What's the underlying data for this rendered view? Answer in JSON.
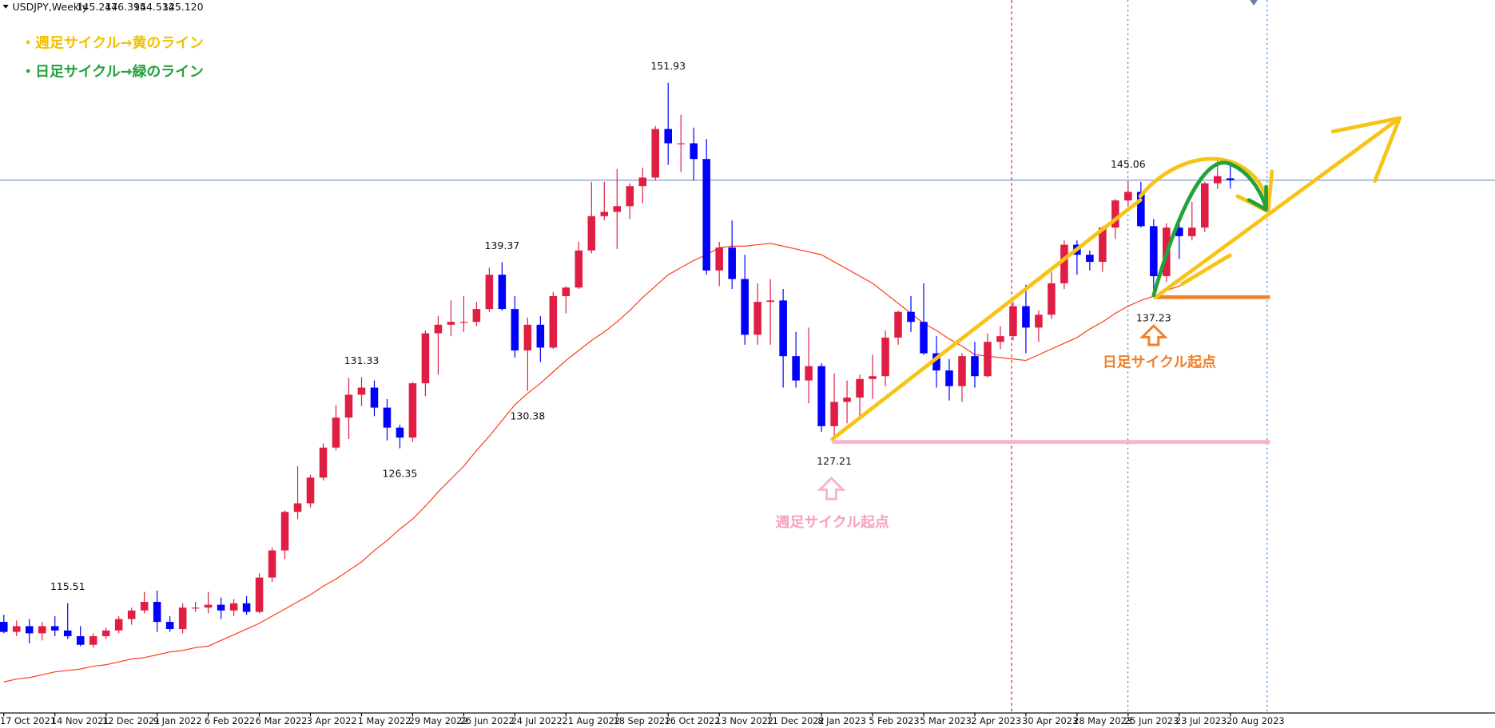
{
  "header": {
    "symbol": "USDJPY,Weekly",
    "ohlc": [
      "145.247",
      "146.395",
      "144.532",
      "145.120"
    ]
  },
  "notes": [
    "・週足サイクル→黄のライン",
    "・日足サイクル→緑のライン"
  ],
  "annotations": {
    "daily_start": "日足サイクル起点",
    "weekly_start": "週足サイクル起点"
  },
  "chart_data": {
    "type": "candlestick",
    "categories": [
      "17 Oct 2021",
      null,
      null,
      null,
      "14 Nov 2021",
      null,
      null,
      null,
      "12 Dec 2021",
      null,
      null,
      null,
      "9 Jan 2022",
      null,
      null,
      null,
      "6 Feb 2022",
      null,
      null,
      null,
      "6 Mar 2022",
      null,
      null,
      null,
      "3 Apr 2022",
      null,
      null,
      null,
      "1 May 2022",
      null,
      null,
      null,
      "29 May 2022",
      null,
      null,
      null,
      "26 Jun 2022",
      null,
      null,
      null,
      "24 Jul 2022",
      null,
      null,
      null,
      "21 Aug 2022",
      null,
      null,
      null,
      "18 Sep 2022",
      null,
      null,
      null,
      "16 Oct 2022",
      null,
      null,
      null,
      "13 Nov 2022",
      null,
      null,
      null,
      "11 Dec 2022",
      null,
      null,
      null,
      "8 Jan 2023",
      null,
      null,
      null,
      "5 Feb 2023",
      null,
      null,
      null,
      "5 Mar 2023",
      null,
      null,
      null,
      "2 Apr 2023",
      null,
      null,
      null,
      "30 Apr 2023",
      null,
      null,
      null,
      "28 May 2023",
      null,
      null,
      null,
      "25 Jun 2023",
      null,
      null,
      null,
      "23 Jul 2023",
      null,
      null,
      null,
      "20 Aug 2023"
    ],
    "open": [
      114.2,
      113.5,
      113.9,
      113.4,
      113.9,
      113.6,
      113.2,
      112.6,
      113.2,
      113.6,
      114.4,
      115.0,
      115.6,
      114.2,
      113.7,
      115.2,
      115.2,
      115.4,
      115.0,
      115.5,
      114.9,
      117.3,
      119.2,
      121.9,
      122.5,
      124.3,
      126.4,
      128.5,
      130.1,
      130.6,
      129.2,
      127.8,
      127.1,
      130.9,
      134.4,
      135.0,
      135.2,
      135.2,
      136.1,
      138.5,
      136.1,
      133.2,
      135.0,
      133.4,
      137.0,
      137.6,
      140.2,
      142.6,
      142.9,
      143.3,
      144.7,
      145.3,
      148.7,
      147.7,
      147.7,
      146.6,
      138.8,
      140.4,
      138.2,
      134.3,
      136.6,
      136.7,
      132.8,
      131.1,
      132.1,
      127.9,
      129.6,
      129.9,
      131.2,
      131.4,
      134.1,
      135.9,
      135.2,
      133.0,
      131.8,
      130.7,
      132.8,
      131.4,
      133.8,
      134.2,
      136.3,
      134.8,
      135.7,
      137.9,
      140.6,
      139.9,
      139.4,
      141.8,
      143.7,
      144.3,
      141.9,
      138.4,
      141.8,
      141.2,
      141.8,
      144.9,
      145.247
    ],
    "high": [
      114.7,
      114.3,
      114.4,
      114.2,
      114.6,
      115.51,
      113.9,
      113.4,
      113.8,
      114.6,
      115.2,
      116.3,
      116.4,
      114.6,
      115.5,
      115.6,
      116.3,
      115.9,
      115.8,
      116.0,
      117.6,
      119.4,
      122.0,
      125.1,
      124.5,
      126.7,
      129.4,
      131.3,
      131.33,
      131.1,
      129.8,
      128.0,
      131.0,
      134.6,
      135.6,
      136.7,
      137.0,
      136.6,
      139.0,
      139.37,
      137.0,
      135.5,
      135.6,
      137.3,
      137.7,
      140.8,
      145.0,
      145.0,
      145.9,
      144.9,
      146.0,
      148.9,
      151.93,
      149.7,
      148.8,
      148.0,
      140.8,
      142.3,
      139.9,
      137.9,
      138.2,
      137.5,
      134.5,
      134.8,
      132.3,
      131.6,
      131.1,
      131.5,
      132.9,
      134.6,
      136.0,
      137.0,
      137.9,
      134.2,
      132.6,
      133.0,
      133.8,
      134.4,
      134.9,
      136.6,
      137.8,
      136.0,
      138.7,
      140.9,
      140.9,
      140.2,
      141.9,
      143.8,
      145.06,
      145.0,
      142.4,
      142.1,
      142.1,
      143.6,
      145.0,
      146.6,
      146.395
    ],
    "low": [
      113.4,
      113.2,
      112.7,
      112.9,
      113.2,
      113.0,
      112.5,
      112.4,
      113.0,
      113.4,
      114.0,
      114.8,
      113.5,
      113.5,
      113.4,
      114.9,
      114.8,
      114.4,
      114.6,
      114.7,
      114.8,
      117.0,
      118.6,
      121.4,
      122.2,
      124.1,
      126.2,
      127.0,
      129.3,
      128.6,
      126.9,
      126.35,
      126.8,
      130.0,
      131.5,
      134.2,
      134.5,
      134.9,
      135.9,
      136.0,
      132.7,
      130.38,
      132.4,
      133.3,
      135.8,
      137.5,
      140.0,
      142.3,
      140.3,
      142.4,
      143.5,
      145.1,
      146.2,
      145.7,
      145.1,
      138.5,
      137.7,
      137.5,
      133.6,
      133.6,
      133.6,
      130.6,
      130.6,
      129.5,
      127.5,
      127.21,
      128.1,
      128.6,
      129.8,
      130.7,
      133.6,
      134.5,
      132.9,
      130.6,
      129.7,
      129.6,
      130.6,
      131.3,
      133.3,
      133.9,
      133.0,
      133.8,
      135.4,
      137.5,
      138.5,
      138.8,
      138.7,
      141.0,
      143.3,
      141.8,
      137.23,
      138.0,
      139.6,
      140.9,
      141.5,
      144.5,
      144.532
    ],
    "close": [
      113.5,
      113.9,
      113.4,
      113.9,
      113.6,
      113.2,
      112.6,
      113.2,
      113.6,
      114.4,
      115.0,
      115.6,
      114.2,
      113.7,
      115.2,
      115.2,
      115.4,
      115.0,
      115.5,
      114.9,
      117.3,
      119.2,
      121.9,
      122.5,
      124.3,
      126.4,
      128.5,
      130.1,
      130.6,
      129.2,
      127.8,
      127.1,
      130.9,
      134.4,
      135.0,
      135.2,
      135.2,
      136.1,
      138.5,
      136.1,
      133.2,
      135.0,
      133.4,
      137.0,
      137.6,
      140.2,
      142.6,
      142.9,
      143.3,
      144.7,
      145.3,
      148.7,
      147.7,
      147.7,
      146.6,
      138.8,
      140.4,
      138.2,
      134.3,
      136.6,
      136.7,
      132.8,
      131.1,
      132.1,
      127.9,
      129.6,
      129.9,
      131.2,
      131.4,
      134.1,
      135.9,
      135.2,
      133.0,
      131.8,
      130.7,
      132.8,
      131.4,
      133.8,
      134.2,
      136.3,
      134.8,
      135.7,
      137.9,
      140.6,
      139.9,
      139.4,
      141.8,
      143.7,
      144.3,
      141.9,
      138.4,
      141.8,
      141.2,
      141.8,
      144.9,
      145.4,
      145.12
    ],
    "ma": {
      "color": "#ff3c14",
      "values": [
        110.0,
        110.2,
        110.3,
        110.5,
        110.7,
        110.8,
        110.9,
        111.1,
        111.2,
        111.4,
        111.6,
        111.7,
        111.9,
        112.1,
        112.2,
        112.4,
        112.5,
        112.9,
        113.3,
        113.7,
        114.1,
        114.6,
        115.1,
        115.6,
        116.1,
        116.7,
        117.2,
        117.8,
        118.4,
        119.2,
        119.9,
        120.7,
        121.4,
        122.3,
        123.3,
        124.2,
        125.1,
        126.2,
        127.2,
        128.3,
        129.4,
        130.2,
        130.9,
        131.7,
        132.5,
        133.2,
        133.9,
        134.5,
        135.2,
        136.0,
        136.9,
        137.7,
        138.5,
        139.0,
        139.5,
        139.9,
        140.4,
        140.5,
        140.5,
        140.6,
        140.7,
        140.5,
        140.3,
        140.1,
        139.9,
        139.4,
        138.9,
        138.4,
        137.9,
        137.2,
        136.5,
        135.8,
        135.1,
        134.6,
        134.0,
        133.5,
        132.9,
        132.8,
        132.7,
        132.6,
        132.5,
        132.9,
        133.3,
        133.7,
        134.1,
        134.7,
        135.2,
        135.8,
        136.3,
        136.7,
        137.0,
        137.4,
        137.7,
        138.3,
        138.9,
        139.3,
        139.9
      ]
    },
    "up_color": "#e01e44",
    "down_color": "#0000ff",
    "ylim": [
      107.86,
      157.73
    ]
  }
}
